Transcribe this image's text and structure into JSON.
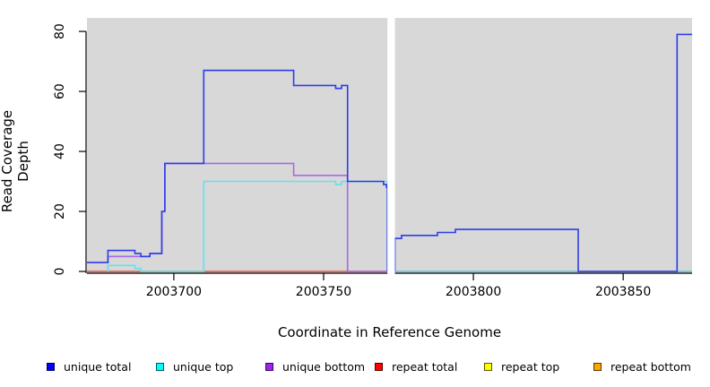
{
  "chart_data": {
    "type": "line",
    "title": "",
    "xlabel": "Coordinate in Reference Genome",
    "ylabel": "Read Coverage Depth",
    "xlim": [
      2003671,
      2003873
    ],
    "ylim": [
      0,
      84.5
    ],
    "x_ticks": [
      2003700,
      2003750,
      2003800,
      2003850
    ],
    "y_ticks": [
      0,
      20,
      40,
      60,
      80
    ],
    "grid": false,
    "legend_position": "bottom",
    "plot_background": "#d8d8d8",
    "gap_region": {
      "from": 2003771.3,
      "to": 2003773.8,
      "color": "#ffffff"
    },
    "series": [
      {
        "name": "repeat bottom",
        "color": "#ff9e2a",
        "draw_color": "#ff9e2a",
        "segments": [
          [
            [
              2003671,
              0
            ],
            [
              2003771.3,
              0
            ]
          ],
          [
            [
              2003773.8,
              0
            ],
            [
              2003873,
              0
            ]
          ]
        ]
      },
      {
        "name": "repeat top",
        "color": "#ffff00",
        "draw_color": "#f2e23c",
        "segments": [
          [
            [
              2003671,
              0
            ],
            [
              2003771.3,
              0
            ]
          ],
          [
            [
              2003773.8,
              0
            ],
            [
              2003873,
              0
            ]
          ]
        ]
      },
      {
        "name": "repeat total",
        "color": "#ff0000",
        "draw_color": "#e05575",
        "segments": [
          [
            [
              2003671,
              0
            ],
            [
              2003771.3,
              0
            ]
          ],
          [
            [
              2003773.8,
              0
            ],
            [
              2003873,
              0
            ]
          ]
        ]
      },
      {
        "name": "unique bottom",
        "color": "#a020f0",
        "draw_color": "#a968e6",
        "segments": [
          [
            [
              2003671,
              3
            ],
            [
              2003678,
              5
            ],
            [
              2003692,
              6
            ],
            [
              2003696,
              20
            ],
            [
              2003697,
              36
            ],
            [
              2003740,
              32
            ],
            [
              2003758,
              0
            ],
            [
              2003771.3,
              0
            ]
          ],
          [
            [
              2003773.8,
              0
            ],
            [
              2003873,
              0
            ]
          ]
        ]
      },
      {
        "name": "unique top",
        "color": "#00ffff",
        "draw_color": "#5fe3ec",
        "segments": [
          [
            [
              2003678,
              0
            ],
            [
              2003678,
              2
            ],
            [
              2003687,
              1
            ],
            [
              2003689,
              0
            ],
            [
              2003710,
              30
            ],
            [
              2003754,
              29
            ],
            [
              2003756,
              30
            ],
            [
              2003771.3,
              30
            ],
            [
              2003771.3,
              0
            ]
          ],
          [
            [
              2003773.8,
              0
            ],
            [
              2003873,
              0
            ]
          ]
        ]
      },
      {
        "name": "unique total",
        "color": "#0000ff",
        "draw_color": "#2c3ce8",
        "segments": [
          [
            [
              2003671,
              3
            ],
            [
              2003678,
              7
            ],
            [
              2003687,
              6
            ],
            [
              2003689,
              5
            ],
            [
              2003692,
              6
            ],
            [
              2003696,
              20
            ],
            [
              2003697,
              36
            ],
            [
              2003710,
              67
            ],
            [
              2003740,
              62
            ],
            [
              2003754,
              61
            ],
            [
              2003756,
              62
            ],
            [
              2003758,
              30
            ],
            [
              2003770,
              29
            ],
            [
              2003771,
              28
            ],
            [
              2003771.3,
              0
            ]
          ],
          [
            [
              2003773.8,
              0
            ],
            [
              2003773.8,
              11
            ],
            [
              2003776,
              12
            ],
            [
              2003788,
              13
            ],
            [
              2003794,
              14
            ],
            [
              2003835,
              0
            ],
            [
              2003868,
              79
            ],
            [
              2003873,
              79
            ]
          ]
        ]
      }
    ],
    "baseline_overdraw_segments": [
      {
        "from": 2003671,
        "to": 2003678,
        "color": "#e05575"
      },
      {
        "from": 2003678,
        "to": 2003689,
        "color": "#ff9e2a"
      },
      {
        "from": 2003689,
        "to": 2003710,
        "color": "#46c8a0"
      },
      {
        "from": 2003710,
        "to": 2003759,
        "color": "#ff9e2a"
      },
      {
        "from": 2003759,
        "to": 2003771.3,
        "color": "#e05575"
      },
      {
        "from": 2003773.8,
        "to": 2003835,
        "color": "#62bf6a"
      },
      {
        "from": 2003868,
        "to": 2003873,
        "color": "#e04848"
      }
    ],
    "legend": [
      {
        "label": "unique total",
        "color": "#0000ff"
      },
      {
        "label": "unique top",
        "color": "#00ffff"
      },
      {
        "label": "unique bottom",
        "color": "#a020f0"
      },
      {
        "label": "repeat total",
        "color": "#ff0000"
      },
      {
        "label": "repeat top",
        "color": "#ffff00"
      },
      {
        "label": "repeat bottom",
        "color": "#ffa500"
      }
    ]
  }
}
